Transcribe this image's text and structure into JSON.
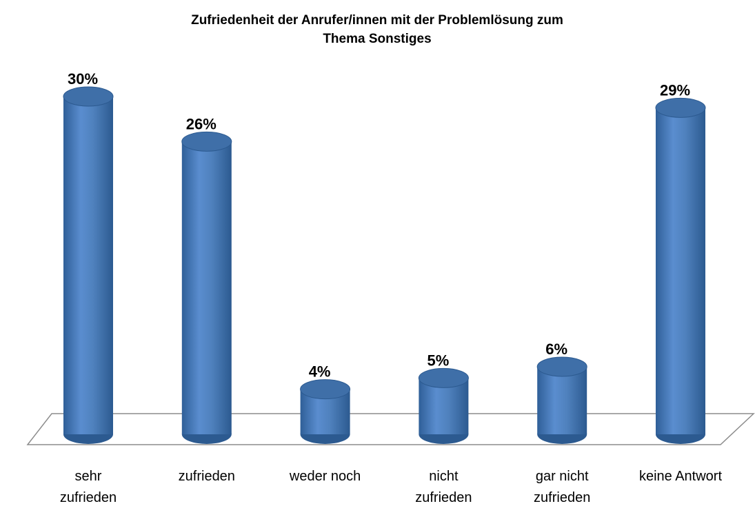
{
  "chart_data": {
    "type": "bar3d",
    "title": "Zufriedenheit der Anrufer/innen mit der Problemlösung zum Thema Sonstiges",
    "categories": [
      "sehr zufrieden",
      "zufrieden",
      "weder noch",
      "nicht zufrieden",
      "gar nicht zufrieden",
      "keine Antwort"
    ],
    "values": [
      30,
      26,
      4,
      5,
      6,
      29
    ],
    "value_labels": [
      "30%",
      "26%",
      "4%",
      "5%",
      "6%",
      "29%"
    ],
    "color": "#4f81bd",
    "ylim": [
      0,
      30
    ]
  }
}
